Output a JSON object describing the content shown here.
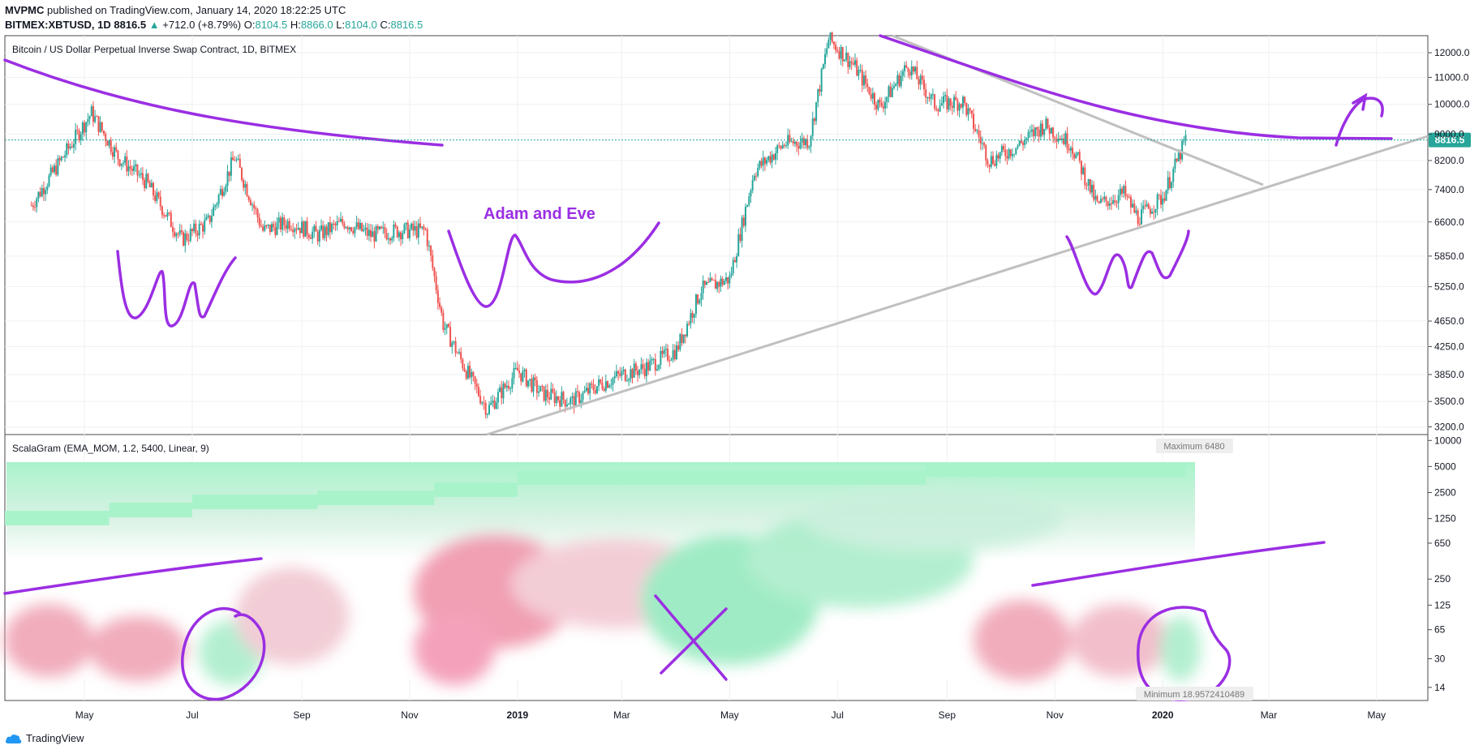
{
  "header": {
    "publisher": "MVPMC",
    "published_text": "published on TradingView.com, January 14, 2020 18:22:25 UTC",
    "symbol": "BITMEX:XBTUSD, 1D",
    "last": "8816.5",
    "change": "+712.0 (+8.79%)",
    "o_label": "O:",
    "o_val": "8104.5",
    "h_label": "H:",
    "h_val": "8866.0",
    "l_label": "L:",
    "l_val": "8104.0",
    "c_label": "C:",
    "c_val": "8816.5"
  },
  "chart_data": [
    {
      "type": "candlestick",
      "title": "Bitcoin / US Dollar Perpetual Inverse Swap Contract, 1D, BITMEX",
      "y_scale": "log",
      "y_ticks": [
        "12000.0",
        "11000.0",
        "10000.0",
        "9000.0",
        "8200.0",
        "7400.0",
        "6600.0",
        "5850.0",
        "5250.0",
        "4650.0",
        "4250.0",
        "3850.0",
        "3500.0",
        "3200.0"
      ],
      "ylim": [
        3150,
        12600
      ],
      "x_ticks": [
        "May",
        "Jul",
        "Sep",
        "Nov",
        "2019",
        "Mar",
        "May",
        "Jul",
        "Sep",
        "Nov",
        "2020",
        "Mar",
        "May"
      ],
      "last_price_label": "8816.5",
      "series": [
        {
          "name": "XBTUSD",
          "x": [
            "2018-04-01",
            "2018-04-15",
            "2018-05-05",
            "2018-05-20",
            "2018-06-05",
            "2018-06-25",
            "2018-07-10",
            "2018-07-25",
            "2018-08-10",
            "2018-08-25",
            "2018-09-10",
            "2018-09-25",
            "2018-10-10",
            "2018-10-25",
            "2018-11-10",
            "2018-11-20",
            "2018-12-01",
            "2018-12-15",
            "2019-01-01",
            "2019-01-15",
            "2019-02-01",
            "2019-02-15",
            "2019-03-01",
            "2019-03-15",
            "2019-04-01",
            "2019-04-15",
            "2019-05-01",
            "2019-05-15",
            "2019-06-01",
            "2019-06-15",
            "2019-06-26",
            "2019-07-10",
            "2019-07-25",
            "2019-08-10",
            "2019-08-25",
            "2019-09-10",
            "2019-09-25",
            "2019-10-10",
            "2019-10-26",
            "2019-11-10",
            "2019-11-25",
            "2019-12-10",
            "2019-12-18",
            "2020-01-01",
            "2020-01-14"
          ],
          "close": [
            7000,
            8000,
            9700,
            8300,
            7600,
            6200,
            6600,
            8300,
            6400,
            6600,
            6300,
            6600,
            6300,
            6400,
            6400,
            4600,
            4000,
            3400,
            3900,
            3600,
            3500,
            3700,
            3850,
            3950,
            4200,
            5200,
            5400,
            7900,
            8700,
            8800,
            12600,
            11500,
            9900,
            11500,
            10000,
            10100,
            8200,
            8600,
            9300,
            8700,
            7000,
            7300,
            6700,
            7200,
            8816.5
          ]
        }
      ],
      "annotations": [
        "Adam and Eve"
      ]
    },
    {
      "type": "heatmap",
      "title": "ScalaGram (EMA_MOM, 1.2, 5400, Linear, 9)",
      "y_scale": "log",
      "y_ticks": [
        "10000",
        "5000",
        "2500",
        "1250",
        "650",
        "250",
        "125",
        "65",
        "30",
        "14"
      ],
      "max_label": "Maximum 6480",
      "min_label": "Minimum 18.9572410489",
      "colors": {
        "positive": "#9ef0c2",
        "negative": "#ef8fa6",
        "neutral": "#ffffff"
      }
    }
  ],
  "footer": {
    "brand": "TradingView"
  }
}
